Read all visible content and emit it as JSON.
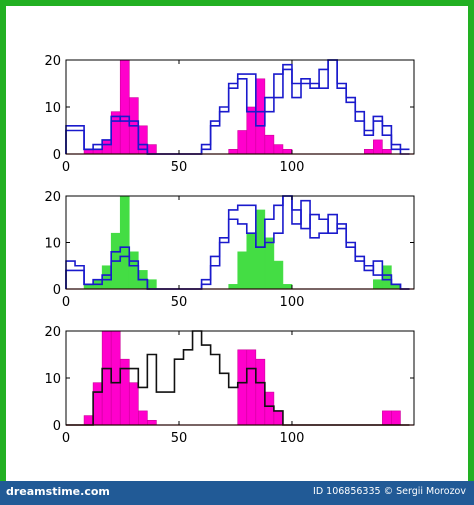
{
  "colors": {
    "frame": "#22b022",
    "footer_bg": "#215a96",
    "magenta": "#ff00cc",
    "magenta_edge": "#cc0099",
    "green": "#44dd44",
    "blue": "#1a1acc",
    "black": "#111111",
    "baseline": "#cc2222"
  },
  "footer": {
    "left_text": "dreamstime.com",
    "right_text": "ID 106856335 © Sergii Morozov"
  },
  "chart_data": [
    {
      "type": "bar",
      "panel": 1,
      "xlim": [
        0,
        154
      ],
      "ylim": [
        0,
        20
      ],
      "xticks": [
        "0",
        "50",
        "100"
      ],
      "yticks": [
        "0",
        "10",
        "20"
      ],
      "grid": false,
      "x_edges": [
        0,
        4,
        8,
        12,
        16,
        20,
        24,
        28,
        32,
        36,
        40,
        44,
        48,
        52,
        56,
        60,
        64,
        68,
        72,
        76,
        80,
        84,
        88,
        92,
        96,
        100,
        104,
        108,
        112,
        116,
        120,
        124,
        128,
        132,
        136,
        140,
        144,
        148,
        152
      ],
      "series": [
        {
          "style": "bar",
          "color": "magenta",
          "values": [
            0,
            0,
            1,
            1,
            3,
            9,
            20,
            12,
            6,
            2,
            0,
            0,
            0,
            0,
            0,
            0,
            0,
            0,
            1,
            5,
            10,
            16,
            4,
            2,
            1,
            0,
            0,
            0,
            0,
            0,
            0,
            0,
            0,
            1,
            3,
            1,
            0,
            0
          ]
        },
        {
          "style": "step",
          "color": "blue",
          "values": [
            6,
            6,
            1,
            1,
            3,
            8,
            7,
            7,
            2,
            0,
            0,
            0,
            0,
            0,
            0,
            1,
            6,
            9,
            14,
            17,
            17,
            6,
            9,
            12,
            18,
            12,
            16,
            14,
            18,
            20,
            15,
            12,
            9,
            5,
            7,
            6,
            2,
            1
          ]
        },
        {
          "style": "step",
          "color": "blue",
          "values": [
            5,
            5,
            1,
            2,
            2,
            7,
            8,
            6,
            1,
            0,
            0,
            0,
            0,
            0,
            0,
            2,
            7,
            10,
            15,
            16,
            9,
            9,
            12,
            17,
            19,
            15,
            15,
            15,
            14,
            20,
            14,
            11,
            7,
            4,
            8,
            4,
            1,
            0
          ]
        }
      ]
    },
    {
      "type": "bar",
      "panel": 2,
      "xlim": [
        0,
        154
      ],
      "ylim": [
        0,
        20
      ],
      "xticks": [
        "0",
        "50",
        "100"
      ],
      "yticks": [
        "0",
        "10",
        "20"
      ],
      "grid": false,
      "x_edges": [
        0,
        4,
        8,
        12,
        16,
        20,
        24,
        28,
        32,
        36,
        40,
        44,
        48,
        52,
        56,
        60,
        64,
        68,
        72,
        76,
        80,
        84,
        88,
        92,
        96,
        100,
        104,
        108,
        112,
        116,
        120,
        124,
        128,
        132,
        136,
        140,
        144,
        148,
        152
      ],
      "series": [
        {
          "style": "bar",
          "color": "green",
          "values": [
            0,
            0,
            1,
            2,
            5,
            12,
            20,
            8,
            4,
            2,
            0,
            0,
            0,
            0,
            0,
            0,
            0,
            0,
            1,
            8,
            12,
            17,
            11,
            6,
            1,
            0,
            0,
            0,
            0,
            0,
            0,
            0,
            0,
            0,
            2,
            5,
            1,
            0
          ]
        },
        {
          "style": "step",
          "color": "blue",
          "values": [
            6,
            5,
            1,
            1,
            3,
            8,
            9,
            6,
            2,
            0,
            0,
            0,
            0,
            0,
            0,
            1,
            7,
            10,
            17,
            18,
            18,
            9,
            10,
            12,
            20,
            17,
            13,
            16,
            15,
            12,
            14,
            10,
            6,
            5,
            3,
            2,
            1,
            0
          ]
        },
        {
          "style": "step",
          "color": "blue",
          "values": [
            4,
            4,
            1,
            2,
            2,
            6,
            7,
            5,
            2,
            0,
            0,
            0,
            0,
            0,
            0,
            2,
            5,
            11,
            15,
            14,
            12,
            9,
            15,
            18,
            20,
            14,
            19,
            11,
            12,
            16,
            13,
            9,
            7,
            4,
            6,
            3,
            1,
            0
          ]
        }
      ]
    },
    {
      "type": "bar",
      "panel": 3,
      "xlim": [
        0,
        154
      ],
      "ylim": [
        0,
        20
      ],
      "xticks": [
        "0",
        "50",
        "100"
      ],
      "yticks": [
        "0",
        "10",
        "20"
      ],
      "grid": false,
      "x_edges": [
        0,
        4,
        8,
        12,
        16,
        20,
        24,
        28,
        32,
        36,
        40,
        44,
        48,
        52,
        56,
        60,
        64,
        68,
        72,
        76,
        80,
        84,
        88,
        92,
        96,
        100,
        104,
        108,
        112,
        116,
        120,
        124,
        128,
        132,
        136,
        140,
        144,
        148,
        152
      ],
      "series": [
        {
          "style": "bar",
          "color": "magenta",
          "values": [
            0,
            0,
            2,
            9,
            20,
            20,
            14,
            9,
            3,
            1,
            0,
            0,
            0,
            0,
            0,
            0,
            0,
            0,
            0,
            16,
            16,
            14,
            7,
            3,
            0,
            0,
            0,
            0,
            0,
            0,
            0,
            0,
            0,
            0,
            0,
            3,
            3,
            0
          ]
        },
        {
          "style": "step",
          "color": "black",
          "values": [
            0,
            0,
            0,
            7,
            12,
            9,
            12,
            12,
            8,
            15,
            7,
            7,
            14,
            16,
            20,
            17,
            15,
            11,
            8,
            9,
            12,
            9,
            4,
            3,
            0,
            0,
            0,
            0,
            0,
            0,
            0,
            0,
            0,
            0,
            0,
            0,
            0,
            0
          ]
        }
      ]
    }
  ]
}
